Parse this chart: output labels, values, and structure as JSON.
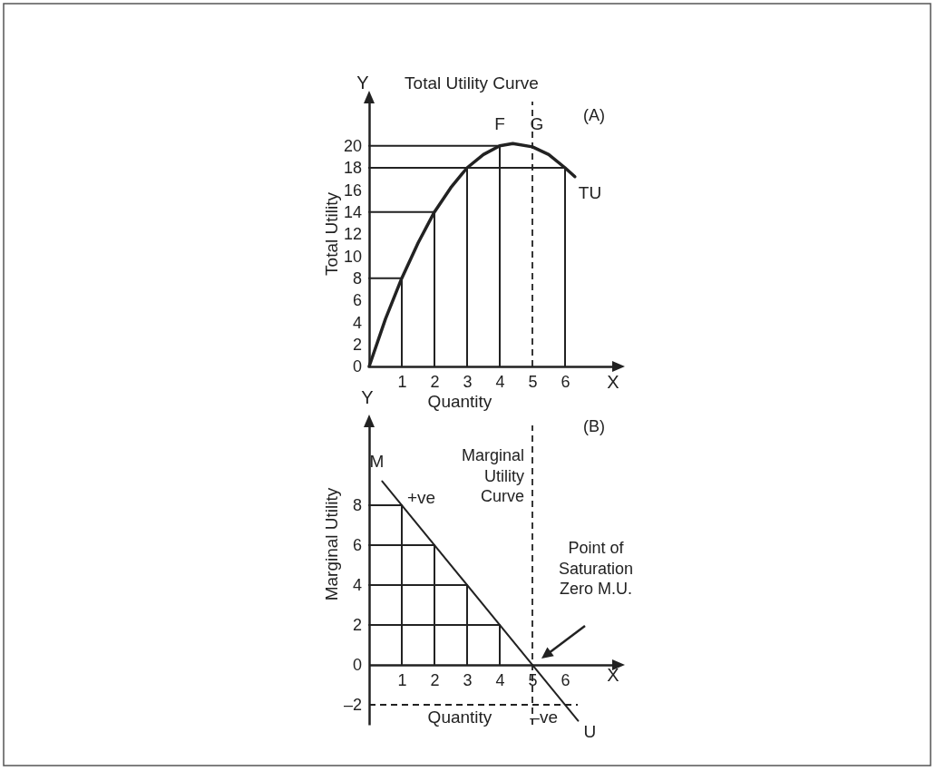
{
  "chart_data": [
    {
      "type": "line",
      "title": "Total Utility Curve",
      "xlabel": "Quantity",
      "ylabel": "Total Utility",
      "xlim": [
        0,
        7.5
      ],
      "xticks": [
        1,
        2,
        3,
        4,
        5,
        6
      ],
      "ylim": [
        0,
        24
      ],
      "yticks": [
        0,
        2,
        4,
        6,
        8,
        10,
        12,
        14,
        16,
        18,
        20
      ],
      "marker": "none",
      "series": [
        {
          "color": "#222222",
          "x": [
            0,
            0.5,
            1,
            1.5,
            2,
            2.5,
            3,
            3.5,
            4,
            4.4,
            5,
            5.5,
            6,
            6.3
          ],
          "values": [
            0,
            4.3,
            8,
            11.2,
            14,
            16.2,
            18,
            19.2,
            20,
            20.2,
            19.9,
            19.2,
            18,
            17.2
          ]
        },
        {
          "color": "#222222",
          "x": [
            0,
            1,
            1
          ],
          "values": [
            8,
            8,
            0
          ]
        },
        {
          "color": "#222222",
          "x": [
            0,
            2,
            2
          ],
          "values": [
            14,
            14,
            0
          ]
        },
        {
          "color": "#222222",
          "x": [
            0,
            3,
            3
          ],
          "values": [
            18,
            18,
            0
          ]
        },
        {
          "color": "#222222",
          "x": [
            0,
            4,
            4
          ],
          "values": [
            20,
            20,
            0
          ]
        },
        {
          "color": "#222222",
          "x": [
            0,
            6,
            6
          ],
          "values": [
            18,
            18,
            0
          ]
        }
      ],
      "ref_lines": [
        {
          "axis": "x",
          "value": 5,
          "line_style": "dashed"
        }
      ],
      "annotations": [
        "Y",
        "X",
        "(A)",
        {
          "text": "F",
          "x": 4,
          "y": 20
        },
        {
          "text": "G",
          "x": 5,
          "y": 20
        },
        {
          "text": "TU",
          "x": 6.3,
          "y": 17.2
        }
      ]
    },
    {
      "type": "line",
      "xlabel": "Quantity",
      "ylabel": "Marginal Utility",
      "xlim": [
        0,
        7.5
      ],
      "xticks": [
        1,
        2,
        3,
        4,
        5,
        6
      ],
      "ylim": [
        -3,
        12
      ],
      "yticks": [
        {
          "value": -2,
          "label": "–2"
        },
        0,
        2,
        4,
        6,
        8
      ],
      "marker": "none",
      "series": [
        {
          "color": "#222222",
          "x": [
            0.4,
            6.4
          ],
          "values": [
            9.2,
            -2.8
          ]
        },
        {
          "color": "#222222",
          "x": [
            0,
            1,
            1
          ],
          "values": [
            8,
            8,
            0
          ]
        },
        {
          "color": "#222222",
          "x": [
            0,
            2,
            2
          ],
          "values": [
            6,
            6,
            0
          ]
        },
        {
          "color": "#222222",
          "x": [
            0,
            3,
            3
          ],
          "values": [
            4,
            4,
            0
          ]
        },
        {
          "color": "#222222",
          "x": [
            0,
            4,
            4
          ],
          "values": [
            2,
            2,
            0
          ]
        }
      ],
      "ref_lines": [
        {
          "axis": "x",
          "value": 5,
          "line_style": "dashed"
        },
        {
          "axis": "y",
          "value": -2,
          "line_style": "dashed"
        }
      ],
      "annotations": [
        "Y",
        "X",
        "(B)",
        "Marginal Utility Curve",
        "Point of Saturation Zero M.U.",
        {
          "text": "M",
          "x": 0.4,
          "y": 9.2
        },
        {
          "text": "+ve",
          "x": 1,
          "y": 8
        },
        {
          "text": "–ve",
          "x": 5.5,
          "y": -2
        },
        {
          "text": "U",
          "x": 6.4,
          "y": -2.8
        }
      ]
    }
  ]
}
